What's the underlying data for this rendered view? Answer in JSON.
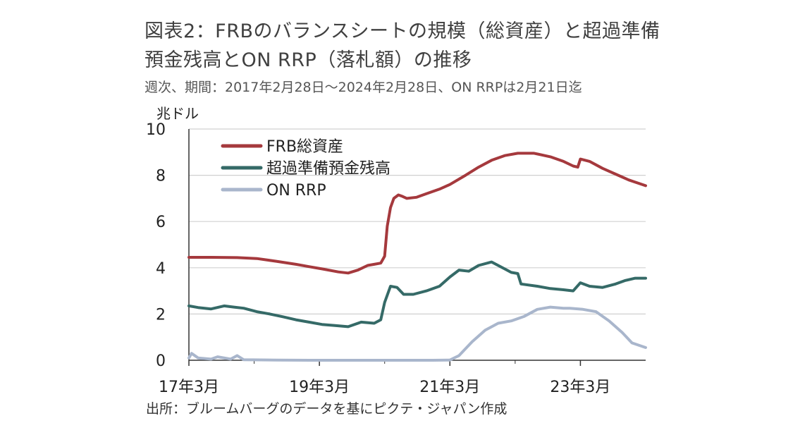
{
  "header": {
    "title_line1": "図表2：FRBのバランスシートの規模（総資産）と超過準備",
    "title_line2": "預金残高とON RRP（落札額）の推移",
    "subtitle": "週次、期間：2017年2月28日～2024年2月28日、ON RRPは2月21日迄"
  },
  "footer": {
    "source": "出所：ブルームバーグのデータを基にピクテ・ジャパン作成"
  },
  "colors": {
    "frb_total_assets": "#A5393D",
    "excess_reserves": "#356A67",
    "on_rrp": "#A9B6CC",
    "grid": "#D0D0D0",
    "axis": "#333333"
  },
  "chart_data": {
    "type": "line",
    "yunit": "兆ドル",
    "ylim": [
      0,
      10
    ],
    "yticks": [
      0,
      2,
      4,
      6,
      8,
      10
    ],
    "xlim": [
      2017.16,
      2024.16
    ],
    "xticks": [
      {
        "x": 2017.16,
        "label": "17年3月"
      },
      {
        "x": 2019.16,
        "label": "19年3月"
      },
      {
        "x": 2021.16,
        "label": "21年3月"
      },
      {
        "x": 2023.16,
        "label": "23年3月"
      }
    ],
    "grid": "horizontal",
    "legend_position": "top-left",
    "series": [
      {
        "name": "FRB総資産",
        "key": "frb_total_assets",
        "points": [
          [
            2017.16,
            4.45
          ],
          [
            2017.5,
            4.45
          ],
          [
            2017.9,
            4.44
          ],
          [
            2018.2,
            4.4
          ],
          [
            2018.5,
            4.28
          ],
          [
            2018.8,
            4.15
          ],
          [
            2019.0,
            4.05
          ],
          [
            2019.2,
            3.95
          ],
          [
            2019.45,
            3.82
          ],
          [
            2019.6,
            3.77
          ],
          [
            2019.75,
            3.9
          ],
          [
            2019.9,
            4.1
          ],
          [
            2020.0,
            4.15
          ],
          [
            2020.1,
            4.2
          ],
          [
            2020.12,
            4.3
          ],
          [
            2020.16,
            4.5
          ],
          [
            2020.2,
            5.8
          ],
          [
            2020.25,
            6.6
          ],
          [
            2020.3,
            7.0
          ],
          [
            2020.37,
            7.15
          ],
          [
            2020.42,
            7.1
          ],
          [
            2020.5,
            7.0
          ],
          [
            2020.65,
            7.05
          ],
          [
            2020.8,
            7.2
          ],
          [
            2021.0,
            7.4
          ],
          [
            2021.16,
            7.6
          ],
          [
            2021.4,
            8.0
          ],
          [
            2021.6,
            8.35
          ],
          [
            2021.8,
            8.65
          ],
          [
            2022.0,
            8.85
          ],
          [
            2022.2,
            8.95
          ],
          [
            2022.45,
            8.95
          ],
          [
            2022.7,
            8.8
          ],
          [
            2022.9,
            8.6
          ],
          [
            2023.05,
            8.4
          ],
          [
            2023.12,
            8.35
          ],
          [
            2023.16,
            8.7
          ],
          [
            2023.3,
            8.6
          ],
          [
            2023.5,
            8.3
          ],
          [
            2023.7,
            8.05
          ],
          [
            2023.9,
            7.8
          ],
          [
            2024.16,
            7.55
          ]
        ]
      },
      {
        "name": "超過準備預金残高",
        "key": "excess_reserves",
        "points": [
          [
            2017.16,
            2.35
          ],
          [
            2017.3,
            2.28
          ],
          [
            2017.5,
            2.22
          ],
          [
            2017.7,
            2.35
          ],
          [
            2017.85,
            2.3
          ],
          [
            2018.0,
            2.25
          ],
          [
            2018.2,
            2.1
          ],
          [
            2018.4,
            2.0
          ],
          [
            2018.6,
            1.88
          ],
          [
            2018.8,
            1.75
          ],
          [
            2019.0,
            1.65
          ],
          [
            2019.2,
            1.55
          ],
          [
            2019.4,
            1.5
          ],
          [
            2019.6,
            1.45
          ],
          [
            2019.8,
            1.65
          ],
          [
            2020.0,
            1.6
          ],
          [
            2020.1,
            1.75
          ],
          [
            2020.16,
            2.5
          ],
          [
            2020.25,
            3.2
          ],
          [
            2020.35,
            3.15
          ],
          [
            2020.45,
            2.85
          ],
          [
            2020.6,
            2.85
          ],
          [
            2020.8,
            3.0
          ],
          [
            2021.0,
            3.2
          ],
          [
            2021.16,
            3.6
          ],
          [
            2021.3,
            3.9
          ],
          [
            2021.45,
            3.85
          ],
          [
            2021.6,
            4.1
          ],
          [
            2021.8,
            4.25
          ],
          [
            2022.0,
            3.95
          ],
          [
            2022.1,
            3.8
          ],
          [
            2022.2,
            3.75
          ],
          [
            2022.25,
            3.3
          ],
          [
            2022.5,
            3.2
          ],
          [
            2022.7,
            3.1
          ],
          [
            2022.9,
            3.05
          ],
          [
            2023.05,
            3.0
          ],
          [
            2023.16,
            3.35
          ],
          [
            2023.3,
            3.2
          ],
          [
            2023.5,
            3.15
          ],
          [
            2023.7,
            3.3
          ],
          [
            2023.85,
            3.45
          ],
          [
            2024.0,
            3.55
          ],
          [
            2024.16,
            3.55
          ]
        ]
      },
      {
        "name": "ON RRP",
        "key": "on_rrp",
        "points": [
          [
            2017.16,
            0.1
          ],
          [
            2017.2,
            0.3
          ],
          [
            2017.3,
            0.1
          ],
          [
            2017.5,
            0.05
          ],
          [
            2017.6,
            0.15
          ],
          [
            2017.8,
            0.05
          ],
          [
            2017.9,
            0.2
          ],
          [
            2018.0,
            0.02
          ],
          [
            2018.5,
            0.01
          ],
          [
            2019.0,
            0.0
          ],
          [
            2020.0,
            0.0
          ],
          [
            2020.9,
            0.0
          ],
          [
            2021.16,
            0.01
          ],
          [
            2021.3,
            0.2
          ],
          [
            2021.5,
            0.8
          ],
          [
            2021.7,
            1.3
          ],
          [
            2021.9,
            1.6
          ],
          [
            2022.1,
            1.7
          ],
          [
            2022.3,
            1.9
          ],
          [
            2022.5,
            2.2
          ],
          [
            2022.7,
            2.3
          ],
          [
            2022.9,
            2.25
          ],
          [
            2023.0,
            2.25
          ],
          [
            2023.2,
            2.2
          ],
          [
            2023.4,
            2.1
          ],
          [
            2023.6,
            1.7
          ],
          [
            2023.8,
            1.2
          ],
          [
            2023.95,
            0.75
          ],
          [
            2024.16,
            0.55
          ]
        ]
      }
    ]
  }
}
